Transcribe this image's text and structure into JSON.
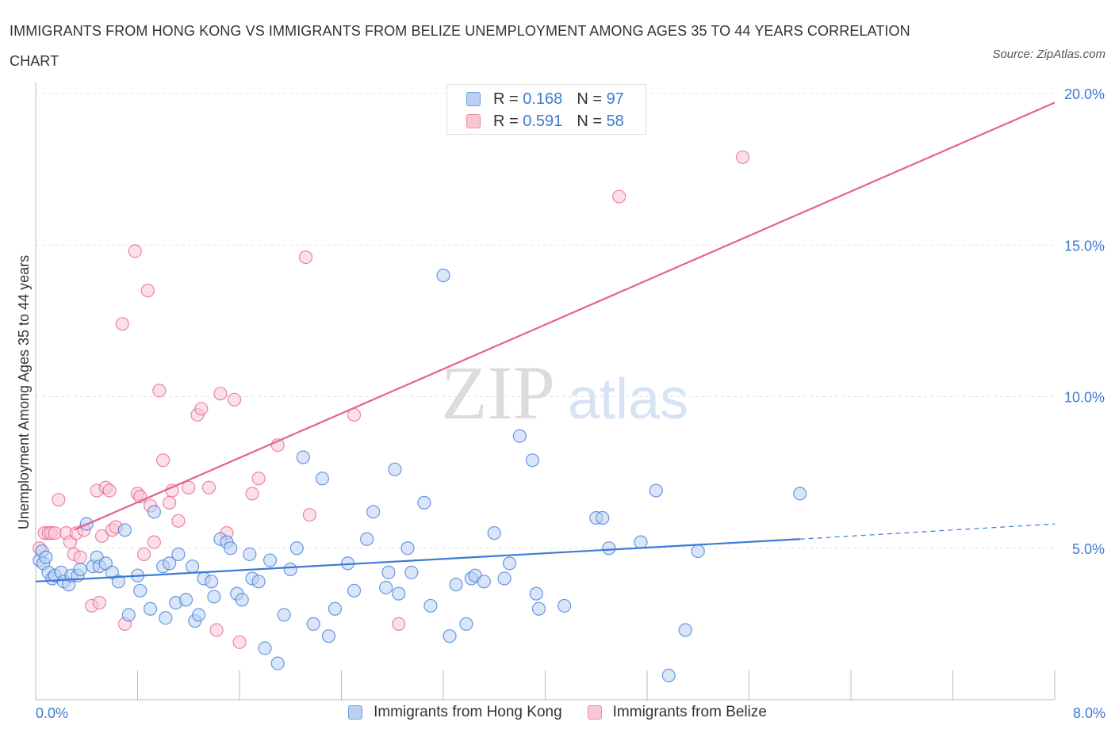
{
  "title": "IMMIGRANTS FROM HONG KONG VS IMMIGRANTS FROM BELIZE UNEMPLOYMENT AMONG AGES 35 TO 44 YEARS CORRELATION CHART",
  "source": "Source: ZipAtlas.com",
  "watermark": {
    "zip": "ZIP",
    "atlas": "atlas"
  },
  "legend": {
    "r_label": "R =",
    "n_label": "N =",
    "series": [
      {
        "r": "0.168",
        "n": "97",
        "fill": "#b9d0f3",
        "stroke": "#6fa0e0"
      },
      {
        "r": "0.591",
        "n": "58",
        "fill": "#f9c6d4",
        "stroke": "#ec8aa8"
      }
    ]
  },
  "bottom_legend": [
    "Immigrants from Hong Kong",
    "Immigrants from Belize"
  ],
  "x_min_label": "0.0%",
  "x_max_label": "8.0%",
  "chart_data": {
    "type": "scatter",
    "title": "IMMIGRANTS FROM HONG KONG VS IMMIGRANTS FROM BELIZE UNEMPLOYMENT AMONG AGES 35 TO 44 YEARS CORRELATION CHART",
    "xlabel": "",
    "ylabel": "Unemployment Among Ages 35 to 44 years",
    "xlim": [
      0,
      8
    ],
    "ylim": [
      0,
      20
    ],
    "x_tick_labels": [
      "0.0%",
      "8.0%"
    ],
    "y_ticks": [
      5,
      10,
      15,
      20
    ],
    "y_tick_labels": [
      "5.0%",
      "10.0%",
      "15.0%",
      "20.0%"
    ],
    "grid": true,
    "legend_position": "top-center",
    "colors": {
      "hong_kong": "#3d7ad6",
      "belize": "#e4628c",
      "point_blue_fill": "#b9d0f3",
      "point_pink_fill": "#f9c6d4"
    },
    "series": [
      {
        "name": "Immigrants from Hong Kong",
        "trend": {
          "x": [
            0,
            6
          ],
          "y": [
            3.9,
            5.3
          ],
          "dashed_to": [
            8,
            5.8
          ]
        },
        "points": [
          [
            0.03,
            4.6
          ],
          [
            0.05,
            4.9
          ],
          [
            0.06,
            4.5
          ],
          [
            0.08,
            4.7
          ],
          [
            0.1,
            4.2
          ],
          [
            0.13,
            4.0
          ],
          [
            0.15,
            4.1
          ],
          [
            0.2,
            4.2
          ],
          [
            0.22,
            3.9
          ],
          [
            0.26,
            3.8
          ],
          [
            0.28,
            4.1
          ],
          [
            0.33,
            4.1
          ],
          [
            0.35,
            4.3
          ],
          [
            0.4,
            5.8
          ],
          [
            0.45,
            4.4
          ],
          [
            0.48,
            4.7
          ],
          [
            0.5,
            4.4
          ],
          [
            0.55,
            4.5
          ],
          [
            0.6,
            4.2
          ],
          [
            0.65,
            3.9
          ],
          [
            0.7,
            5.6
          ],
          [
            0.73,
            2.8
          ],
          [
            0.8,
            4.1
          ],
          [
            0.82,
            3.6
          ],
          [
            0.9,
            3.0
          ],
          [
            0.93,
            6.2
          ],
          [
            1.0,
            4.4
          ],
          [
            1.02,
            2.7
          ],
          [
            1.05,
            4.5
          ],
          [
            1.1,
            3.2
          ],
          [
            1.12,
            4.8
          ],
          [
            1.18,
            3.3
          ],
          [
            1.23,
            4.4
          ],
          [
            1.25,
            2.6
          ],
          [
            1.28,
            2.8
          ],
          [
            1.32,
            4.0
          ],
          [
            1.38,
            3.9
          ],
          [
            1.4,
            3.4
          ],
          [
            1.45,
            5.3
          ],
          [
            1.5,
            5.2
          ],
          [
            1.53,
            5.0
          ],
          [
            1.58,
            3.5
          ],
          [
            1.62,
            3.3
          ],
          [
            1.68,
            4.8
          ],
          [
            1.7,
            4.0
          ],
          [
            1.75,
            3.9
          ],
          [
            1.8,
            1.7
          ],
          [
            1.84,
            4.6
          ],
          [
            1.9,
            1.2
          ],
          [
            1.95,
            2.8
          ],
          [
            2.0,
            4.3
          ],
          [
            2.05,
            5.0
          ],
          [
            2.1,
            8.0
          ],
          [
            2.18,
            2.5
          ],
          [
            2.25,
            7.3
          ],
          [
            2.3,
            2.1
          ],
          [
            2.35,
            3.0
          ],
          [
            2.45,
            4.5
          ],
          [
            2.5,
            3.6
          ],
          [
            2.6,
            5.3
          ],
          [
            2.65,
            6.2
          ],
          [
            2.75,
            3.7
          ],
          [
            2.77,
            4.2
          ],
          [
            2.82,
            7.6
          ],
          [
            2.85,
            3.5
          ],
          [
            2.92,
            5.0
          ],
          [
            2.95,
            4.2
          ],
          [
            3.05,
            6.5
          ],
          [
            3.1,
            3.1
          ],
          [
            3.2,
            14.0
          ],
          [
            3.25,
            2.1
          ],
          [
            3.3,
            3.8
          ],
          [
            3.38,
            2.5
          ],
          [
            3.42,
            4.0
          ],
          [
            3.45,
            4.1
          ],
          [
            3.52,
            3.9
          ],
          [
            3.6,
            5.5
          ],
          [
            3.68,
            4.0
          ],
          [
            3.72,
            4.5
          ],
          [
            3.8,
            8.7
          ],
          [
            3.9,
            7.9
          ],
          [
            3.93,
            3.5
          ],
          [
            3.95,
            3.0
          ],
          [
            4.15,
            3.1
          ],
          [
            4.4,
            6.0
          ],
          [
            4.45,
            6.0
          ],
          [
            4.5,
            5.0
          ],
          [
            4.75,
            5.2
          ],
          [
            4.87,
            6.9
          ],
          [
            4.97,
            0.8
          ],
          [
            5.1,
            2.3
          ],
          [
            5.2,
            4.9
          ],
          [
            6.0,
            6.8
          ]
        ]
      },
      {
        "name": "Immigrants from Belize",
        "trend": {
          "x": [
            0.3,
            8
          ],
          "y": [
            5.6,
            19.7
          ]
        },
        "points": [
          [
            0.03,
            5.0
          ],
          [
            0.07,
            5.5
          ],
          [
            0.1,
            5.5
          ],
          [
            0.12,
            5.5
          ],
          [
            0.15,
            5.5
          ],
          [
            0.18,
            6.6
          ],
          [
            0.24,
            5.5
          ],
          [
            0.27,
            5.2
          ],
          [
            0.3,
            4.8
          ],
          [
            0.32,
            5.5
          ],
          [
            0.35,
            4.7
          ],
          [
            0.38,
            5.6
          ],
          [
            0.44,
            3.1
          ],
          [
            0.48,
            6.9
          ],
          [
            0.5,
            3.2
          ],
          [
            0.52,
            5.4
          ],
          [
            0.55,
            7.0
          ],
          [
            0.58,
            6.9
          ],
          [
            0.6,
            5.6
          ],
          [
            0.63,
            5.7
          ],
          [
            0.68,
            12.4
          ],
          [
            0.7,
            2.5
          ],
          [
            0.78,
            14.8
          ],
          [
            0.8,
            6.8
          ],
          [
            0.82,
            6.7
          ],
          [
            0.85,
            4.8
          ],
          [
            0.88,
            13.5
          ],
          [
            0.9,
            6.4
          ],
          [
            0.93,
            5.2
          ],
          [
            0.97,
            10.2
          ],
          [
            1.0,
            7.9
          ],
          [
            1.05,
            6.5
          ],
          [
            1.07,
            6.9
          ],
          [
            1.12,
            5.9
          ],
          [
            1.2,
            7.0
          ],
          [
            1.27,
            9.4
          ],
          [
            1.3,
            9.6
          ],
          [
            1.36,
            7.0
          ],
          [
            1.42,
            2.3
          ],
          [
            1.45,
            10.1
          ],
          [
            1.5,
            5.5
          ],
          [
            1.56,
            9.9
          ],
          [
            1.6,
            1.9
          ],
          [
            1.7,
            6.8
          ],
          [
            1.75,
            7.3
          ],
          [
            1.9,
            8.4
          ],
          [
            2.12,
            14.6
          ],
          [
            2.15,
            6.1
          ],
          [
            2.5,
            9.4
          ],
          [
            2.85,
            2.5
          ],
          [
            4.58,
            16.6
          ],
          [
            5.55,
            17.9
          ]
        ]
      }
    ]
  }
}
